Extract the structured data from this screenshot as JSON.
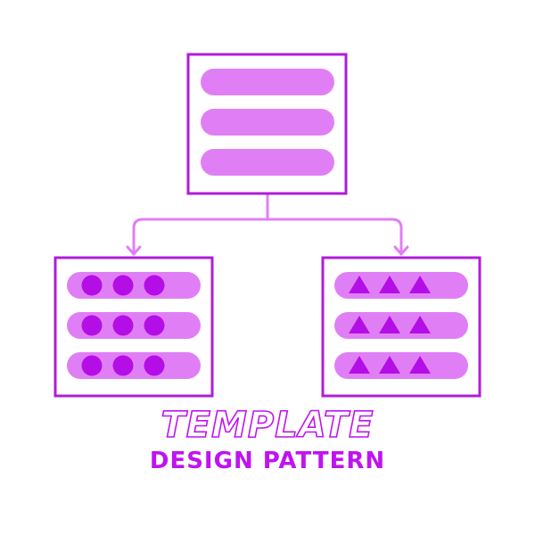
{
  "title": "TEMPLATE",
  "subtitle": "DESIGN PATTERN",
  "colors": {
    "box_border": "#b01cd8",
    "bar_fill": "#e07ff5",
    "shape_fill": "#b40ee6",
    "connector": "#e07ff5",
    "title_stroke": "#c013f0",
    "subtitle_fill": "#c013f0",
    "background": "#ffffff"
  },
  "top_box": {
    "bars": 3,
    "shape": "none"
  },
  "left_box": {
    "bars": 3,
    "shape": "circle",
    "shapes_per_bar": 3
  },
  "right_box": {
    "bars": 3,
    "shape": "triangle",
    "shapes_per_bar": 3
  }
}
